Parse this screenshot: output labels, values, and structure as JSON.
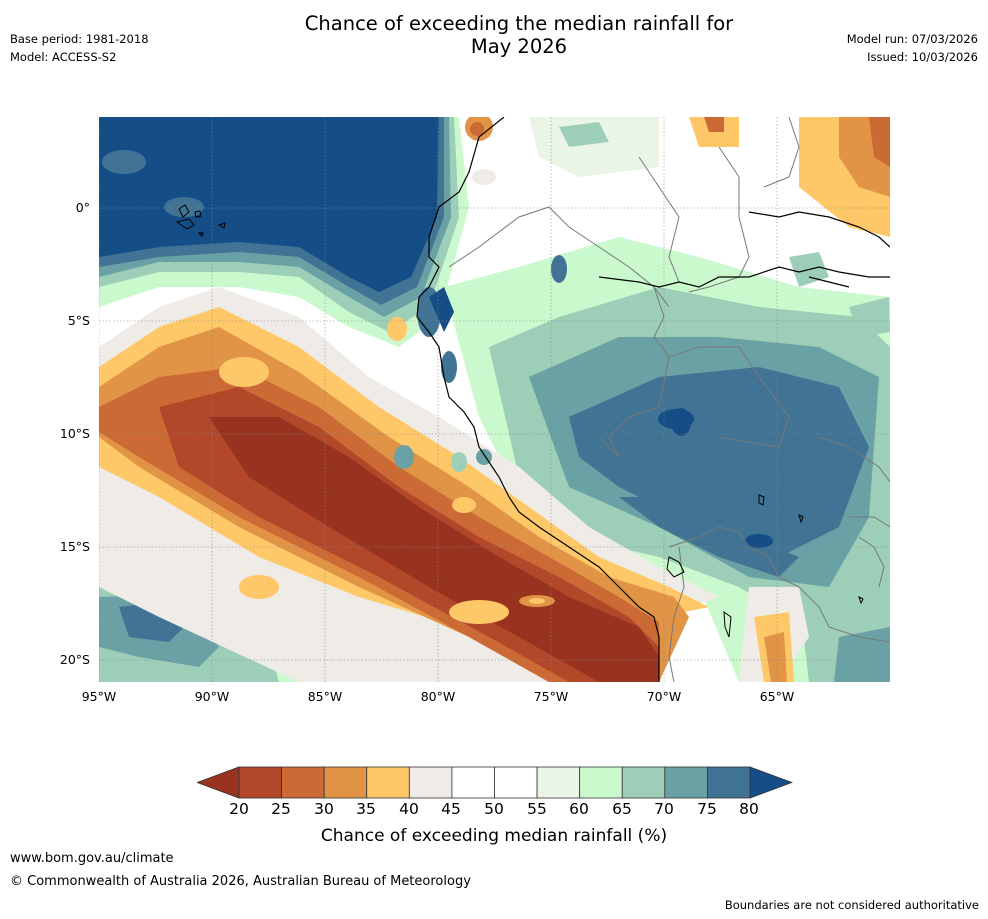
{
  "title_line1": "Chance of exceeding the median rainfall for",
  "title_line2": "May 2026",
  "meta_left": {
    "base_period": "Base period: 1981-2018",
    "model": "Model: ACCESS-S2"
  },
  "meta_right": {
    "model_run": "Model run: 07/03/2026",
    "issued": "Issued: 10/03/2026"
  },
  "axes": {
    "lat_labels": [
      "0°",
      "5°S",
      "10°S",
      "15°S",
      "20°S"
    ],
    "lon_labels": [
      "95°W",
      "90°W",
      "85°W",
      "80°W",
      "75°W",
      "70°W",
      "65°W"
    ]
  },
  "map_data": {
    "extent": {
      "lon_min": -95,
      "lon_max": -60,
      "lat_min": -21,
      "lat_max": 4
    },
    "regions": [
      {
        "name": "pacific-wet-plume",
        "category": ">80",
        "color": "#154d87"
      },
      {
        "name": "pacific-dry-belt",
        "category": "<25",
        "color": "#98331f"
      },
      {
        "name": "amazon-wet-zone",
        "category": "70-75",
        "color": "#407394"
      },
      {
        "name": "southern-wet-zone",
        "category": "70-75",
        "color": "#407394"
      }
    ]
  },
  "colorbar": {
    "title": "Chance of exceeding median rainfall (%)",
    "ticks": [
      "20",
      "25",
      "30",
      "35",
      "40",
      "45",
      "50",
      "55",
      "60",
      "65",
      "70",
      "75",
      "80"
    ],
    "low_color": "#98331f",
    "high_color": "#154d87",
    "colors": [
      "#b2472a",
      "#cc6a35",
      "#e19445",
      "#fec868",
      "#efebe7",
      "#ffffff",
      "#ffffff",
      "#eaf5e8",
      "#caf9cd",
      "#9dcfb8",
      "#6aa1a4",
      "#407394"
    ]
  },
  "footer": {
    "url": "www.bom.gov.au/climate",
    "copyright": "© Commonwealth of Australia 2026, Australian Bureau of Meteorology",
    "note": "Boundaries are not considered authoritative"
  }
}
